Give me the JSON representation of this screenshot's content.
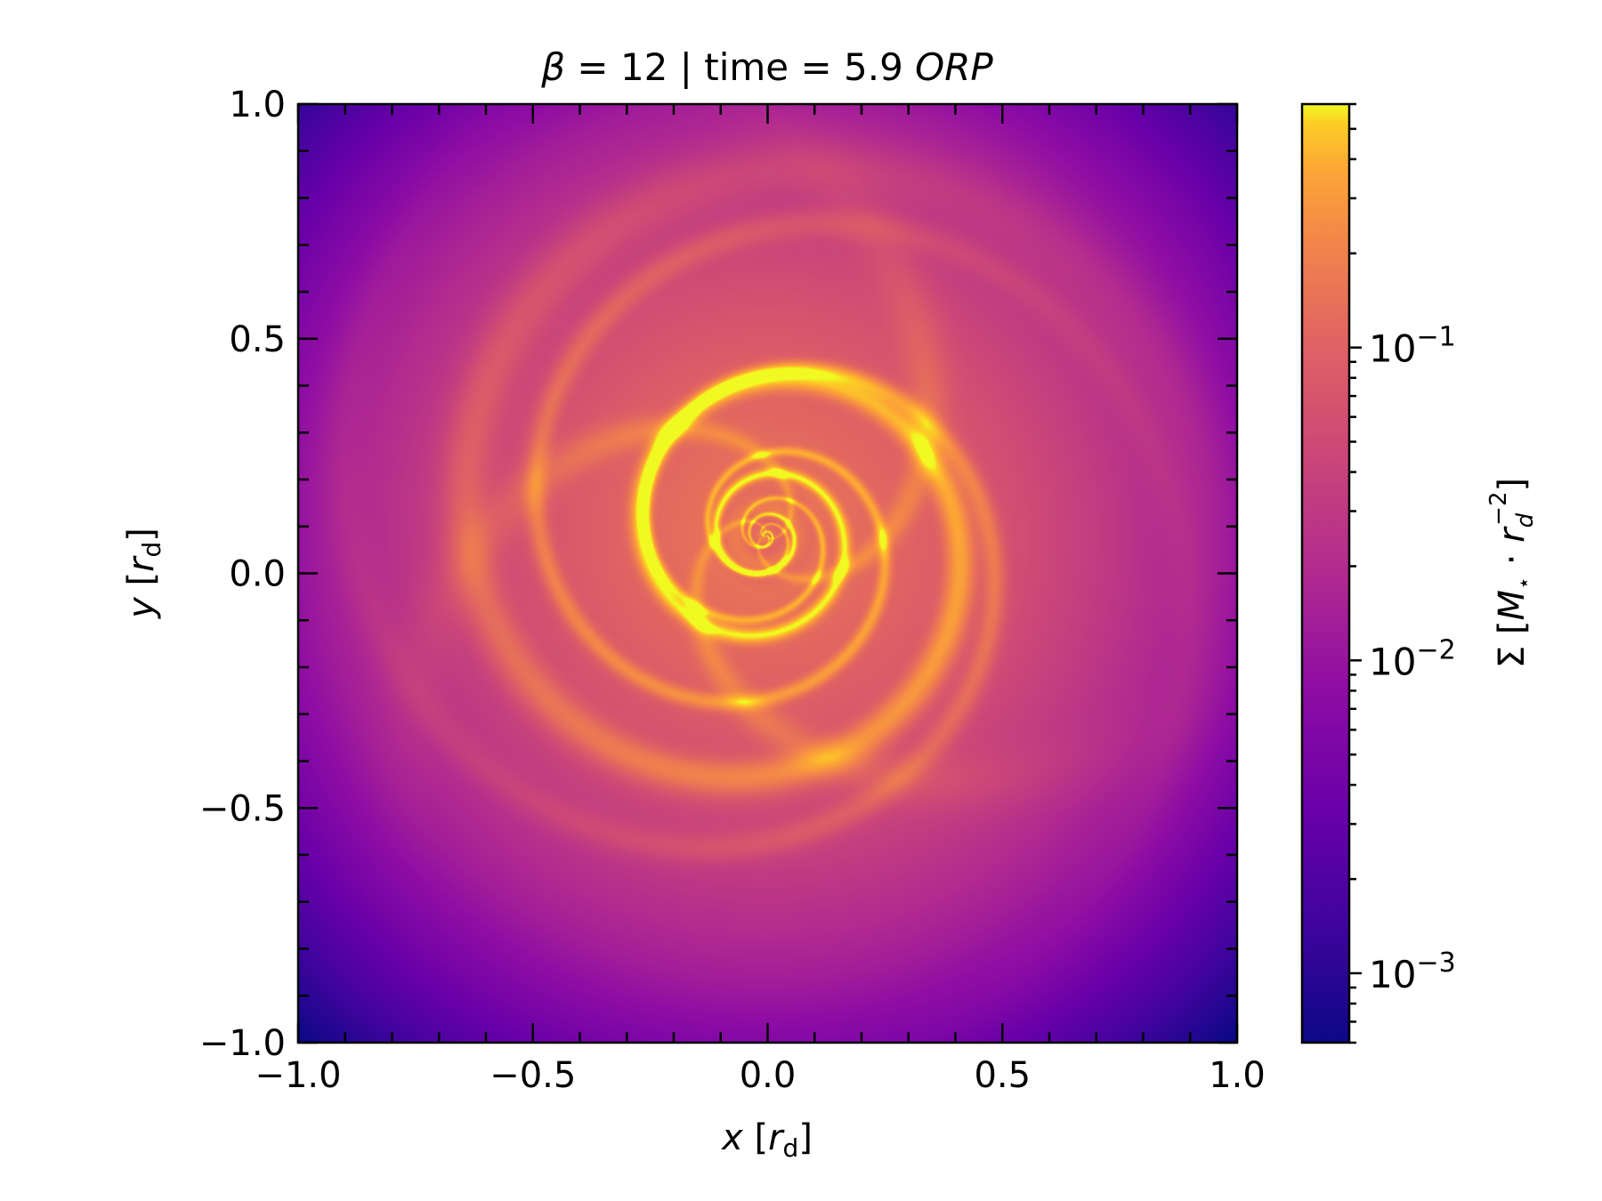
{
  "chart_data": {
    "type": "heatmap",
    "title": {
      "beta_symbol": "β",
      "beta_text": " = 12 | time = 5.9 ",
      "time_unit": "ORP"
    },
    "xlabel": {
      "var": "x",
      "unit_open": " [",
      "unit_base": "r",
      "unit_sub": "d",
      "unit_close": "]"
    },
    "ylabel": {
      "var": "y",
      "unit_open": " [",
      "unit_base": "r",
      "unit_sub": "d",
      "unit_close": "]"
    },
    "xlim": [
      -1.0,
      1.0
    ],
    "ylim": [
      -1.0,
      1.0
    ],
    "x_ticks": [
      {
        "value": -1.0,
        "label": "−1.0"
      },
      {
        "value": -0.5,
        "label": "−0.5"
      },
      {
        "value": 0.0,
        "label": "0.0"
      },
      {
        "value": 0.5,
        "label": "0.5"
      },
      {
        "value": 1.0,
        "label": "1.0"
      }
    ],
    "y_ticks": [
      {
        "value": -1.0,
        "label": "−1.0"
      },
      {
        "value": -0.5,
        "label": "−0.5"
      },
      {
        "value": 0.0,
        "label": "0.0"
      },
      {
        "value": 0.5,
        "label": "0.5"
      },
      {
        "value": 1.0,
        "label": "1.0"
      }
    ],
    "minor_tick_step": 0.1,
    "colorbar": {
      "scale": "log",
      "range": [
        0.0006,
        0.6
      ],
      "colormap": "plasma",
      "ticks": [
        {
          "value": 0.1,
          "base": "10",
          "exp": "−1"
        },
        {
          "value": 0.01,
          "base": "10",
          "exp": "−2"
        },
        {
          "value": 0.001,
          "base": "10",
          "exp": "−3"
        }
      ],
      "label": {
        "prefix": "Σ [",
        "M": "M",
        "M_sub": "⋆",
        "dot": " · ",
        "r": "r",
        "r_sub": "d",
        "r_sup": "−2",
        "suffix": "]"
      }
    },
    "field": {
      "description_key": "surface-density",
      "center": [
        -0.005,
        0.08
      ],
      "colors": [
        "#0d0887",
        "#6a00a8",
        "#b12a90",
        "#e16462",
        "#fca636",
        "#f0f921"
      ]
    }
  }
}
